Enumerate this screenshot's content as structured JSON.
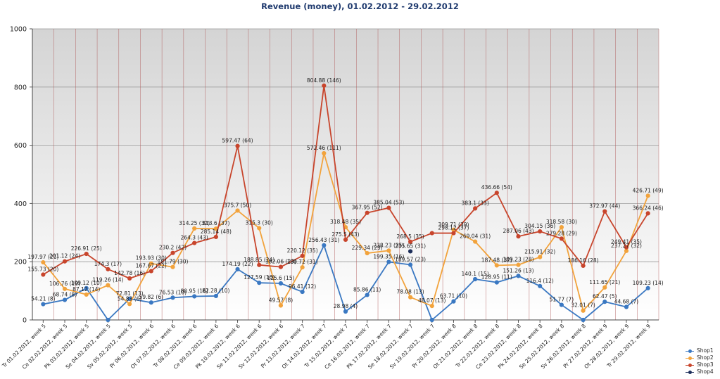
{
  "chart_data": {
    "type": "line",
    "title": "Revenue (money), 01.02.2012 - 29.02.2012",
    "ylim": [
      0,
      1000
    ],
    "yticks": [
      "0",
      "200",
      "400",
      "600",
      "800",
      "1000"
    ],
    "categories": [
      "Tr 01.02.2012, week 5",
      "Ce 02.02.2012, week 5",
      "Pk 03.02.2012, week 5",
      "Se 04.02.2012, week 5",
      "Sv 05.02.2012, week 5",
      "Pr 06.02.2012, week 6",
      "Ot 07.02.2012, week 6",
      "Tr 08.02.2012, week 6",
      "Ce 09.02.2012, week 6",
      "Pk 10.02.2012, week 6",
      "Se 11.02.2012, week 6",
      "Sv 12.02.2012, week 6",
      "Pr 13.02.2012, week 7",
      "Ot 14.02.2012, week 7",
      "Tr 15.02.2012, week 7",
      "Ce 16.02.2012, week 7",
      "Pk 17.02.2012, week 7",
      "Se 18.02.2012, week 7",
      "Sv 19.02.2012, week 7",
      "Pr 20.02.2012, week 8",
      "Ot 21.02.2012, week 8",
      "Tr 22.02.2012, week 8",
      "Ce 23.02.2012, week 8",
      "Pk 24.02.2012, week 8",
      "Se 25.02.2012, week 8",
      "Sv 26.02.2012, week 8",
      "Pr 27.02.2012, week 9",
      "Ot 28.02.2012, week 9",
      "Tr 29.02.2012, week 9"
    ],
    "grid": true,
    "legend_position": "bottom-right",
    "series": [
      {
        "name": "Shop1",
        "color": "#3a78c2",
        "values": [
          54.21,
          68.74,
          109.12,
          0,
          72.81,
          59.82,
          76.53,
          80.95,
          82.28,
          174.19,
          127.59,
          125.6,
          96.41,
          256.43,
          28.98,
          85.86,
          199.35,
          189.57,
          0,
          63.71,
          140.1,
          128.95,
          151.26,
          116.4,
          51.77,
          0,
          62.47,
          44.68,
          109.23
        ],
        "labels": [
          "54.21 (8)",
          "68.74 (8)",
          "109.12 (10)",
          "",
          "72.81 (13)",
          "59.82 (6)",
          "76.53 (10)",
          "80.95 (16)",
          "82.28 (10)",
          "174.19 (22)",
          "127.59 (16)",
          "125.6 (15)",
          "96.41 (12)",
          "256.43 (31)",
          "28.98 (4)",
          "85.86 (11)",
          "199.35 (16)",
          "189.57 (23)",
          "",
          "63.71 (10)",
          "140.1 (15)",
          "128.95 (11)",
          "151.26 (13)",
          "116.4 (12)",
          "51.77 (7)",
          "",
          "62.47 (5)",
          "44.68 (7)",
          "109.23 (14)"
        ]
      },
      {
        "name": "Shop2",
        "color": "#f2a33c",
        "values": [
          197.97,
          106.76,
          87.12,
          119.26,
          54.83,
          193.93,
          181.79,
          314.25,
          313.6,
          375.7,
          315.3,
          49.57,
          180.72,
          572.46,
          318.48,
          229.34,
          238.23,
          78.08,
          48.07,
          309.71,
          269.04,
          187.48,
          189.23,
          215.91,
          318.58,
          32.01,
          111.65,
          237.27,
          426.71
        ],
        "labels": [
          "197.97 (21)",
          "106.76 (19)",
          "87.12 (14)",
          "119.26 (14)",
          "54.83 (6)",
          "193.93 (30)",
          "181.79 (30)",
          "314.25 (32)",
          "313.6 (37)",
          "375.7 (50)",
          "315.3 (30)",
          "49.57 (8)",
          "180.72 (31)",
          "572.46 (111)",
          "318.48 (35)",
          "229.34 (29)",
          "238.23 (35)",
          "78.08 (13)",
          "48.07 (13)",
          "309.71 (39)",
          "269.04 (31)",
          "187.48 (32)",
          "189.23 (28)",
          "215.91 (32)",
          "318.58 (30)",
          "32.01 (7)",
          "111.65 (21)",
          "237.27 (32)",
          "426.71 (49)"
        ]
      },
      {
        "name": "Shop3",
        "color": "#c8452c",
        "values": [
          155.73,
          201.12,
          226.91,
          174.3,
          142.78,
          167.67,
          230.2,
          264.3,
          285.14,
          597.47,
          188.85,
          182.06,
          220.12,
          804.88,
          275.5,
          367.95,
          385.04,
          268.5,
          298.12,
          298.12,
          383.1,
          436.66,
          287.06,
          304.15,
          279.28,
          186.16,
          372.97,
          249.41,
          366.24
        ],
        "labels": [
          "155.73 (20)",
          "201.12 (24)",
          "226.91 (25)",
          "174.3 (17)",
          "142.78 (16)",
          "167.67 (22)",
          "230.2 (42)",
          "264.3 (43)",
          "285.14 (48)",
          "597.47 (64)",
          "188.85 (24)",
          "182.06 (23)",
          "220.12 (35)",
          "804.88 (146)",
          "275.5 (43)",
          "367.95 (52)",
          "385.04 (53)",
          "268.5 (35)",
          "",
          "298.12 (37)",
          "383.1 (33)",
          "436.66 (54)",
          "287.06 (43)",
          "304.15 (36)",
          "279.28 (29)",
          "186.16 (28)",
          "372.97 (44)",
          "249.41 (35)",
          "366.24 (46)"
        ]
      },
      {
        "name": "Shop4",
        "color": "#1c2e5a",
        "values": [
          null,
          null,
          null,
          null,
          null,
          null,
          null,
          null,
          null,
          null,
          null,
          null,
          null,
          null,
          null,
          null,
          null,
          235.65,
          null,
          null,
          null,
          null,
          null,
          null,
          null,
          null,
          null,
          null,
          null
        ],
        "labels": [
          "",
          "",
          "",
          "",
          "",
          "",
          "",
          "",
          "",
          "",
          "",
          "",
          "",
          "",
          "",
          "",
          "",
          "235.65 (31)",
          "",
          "",
          "",
          "",
          "",
          "",
          "",
          "",
          "",
          "",
          ""
        ]
      }
    ]
  }
}
